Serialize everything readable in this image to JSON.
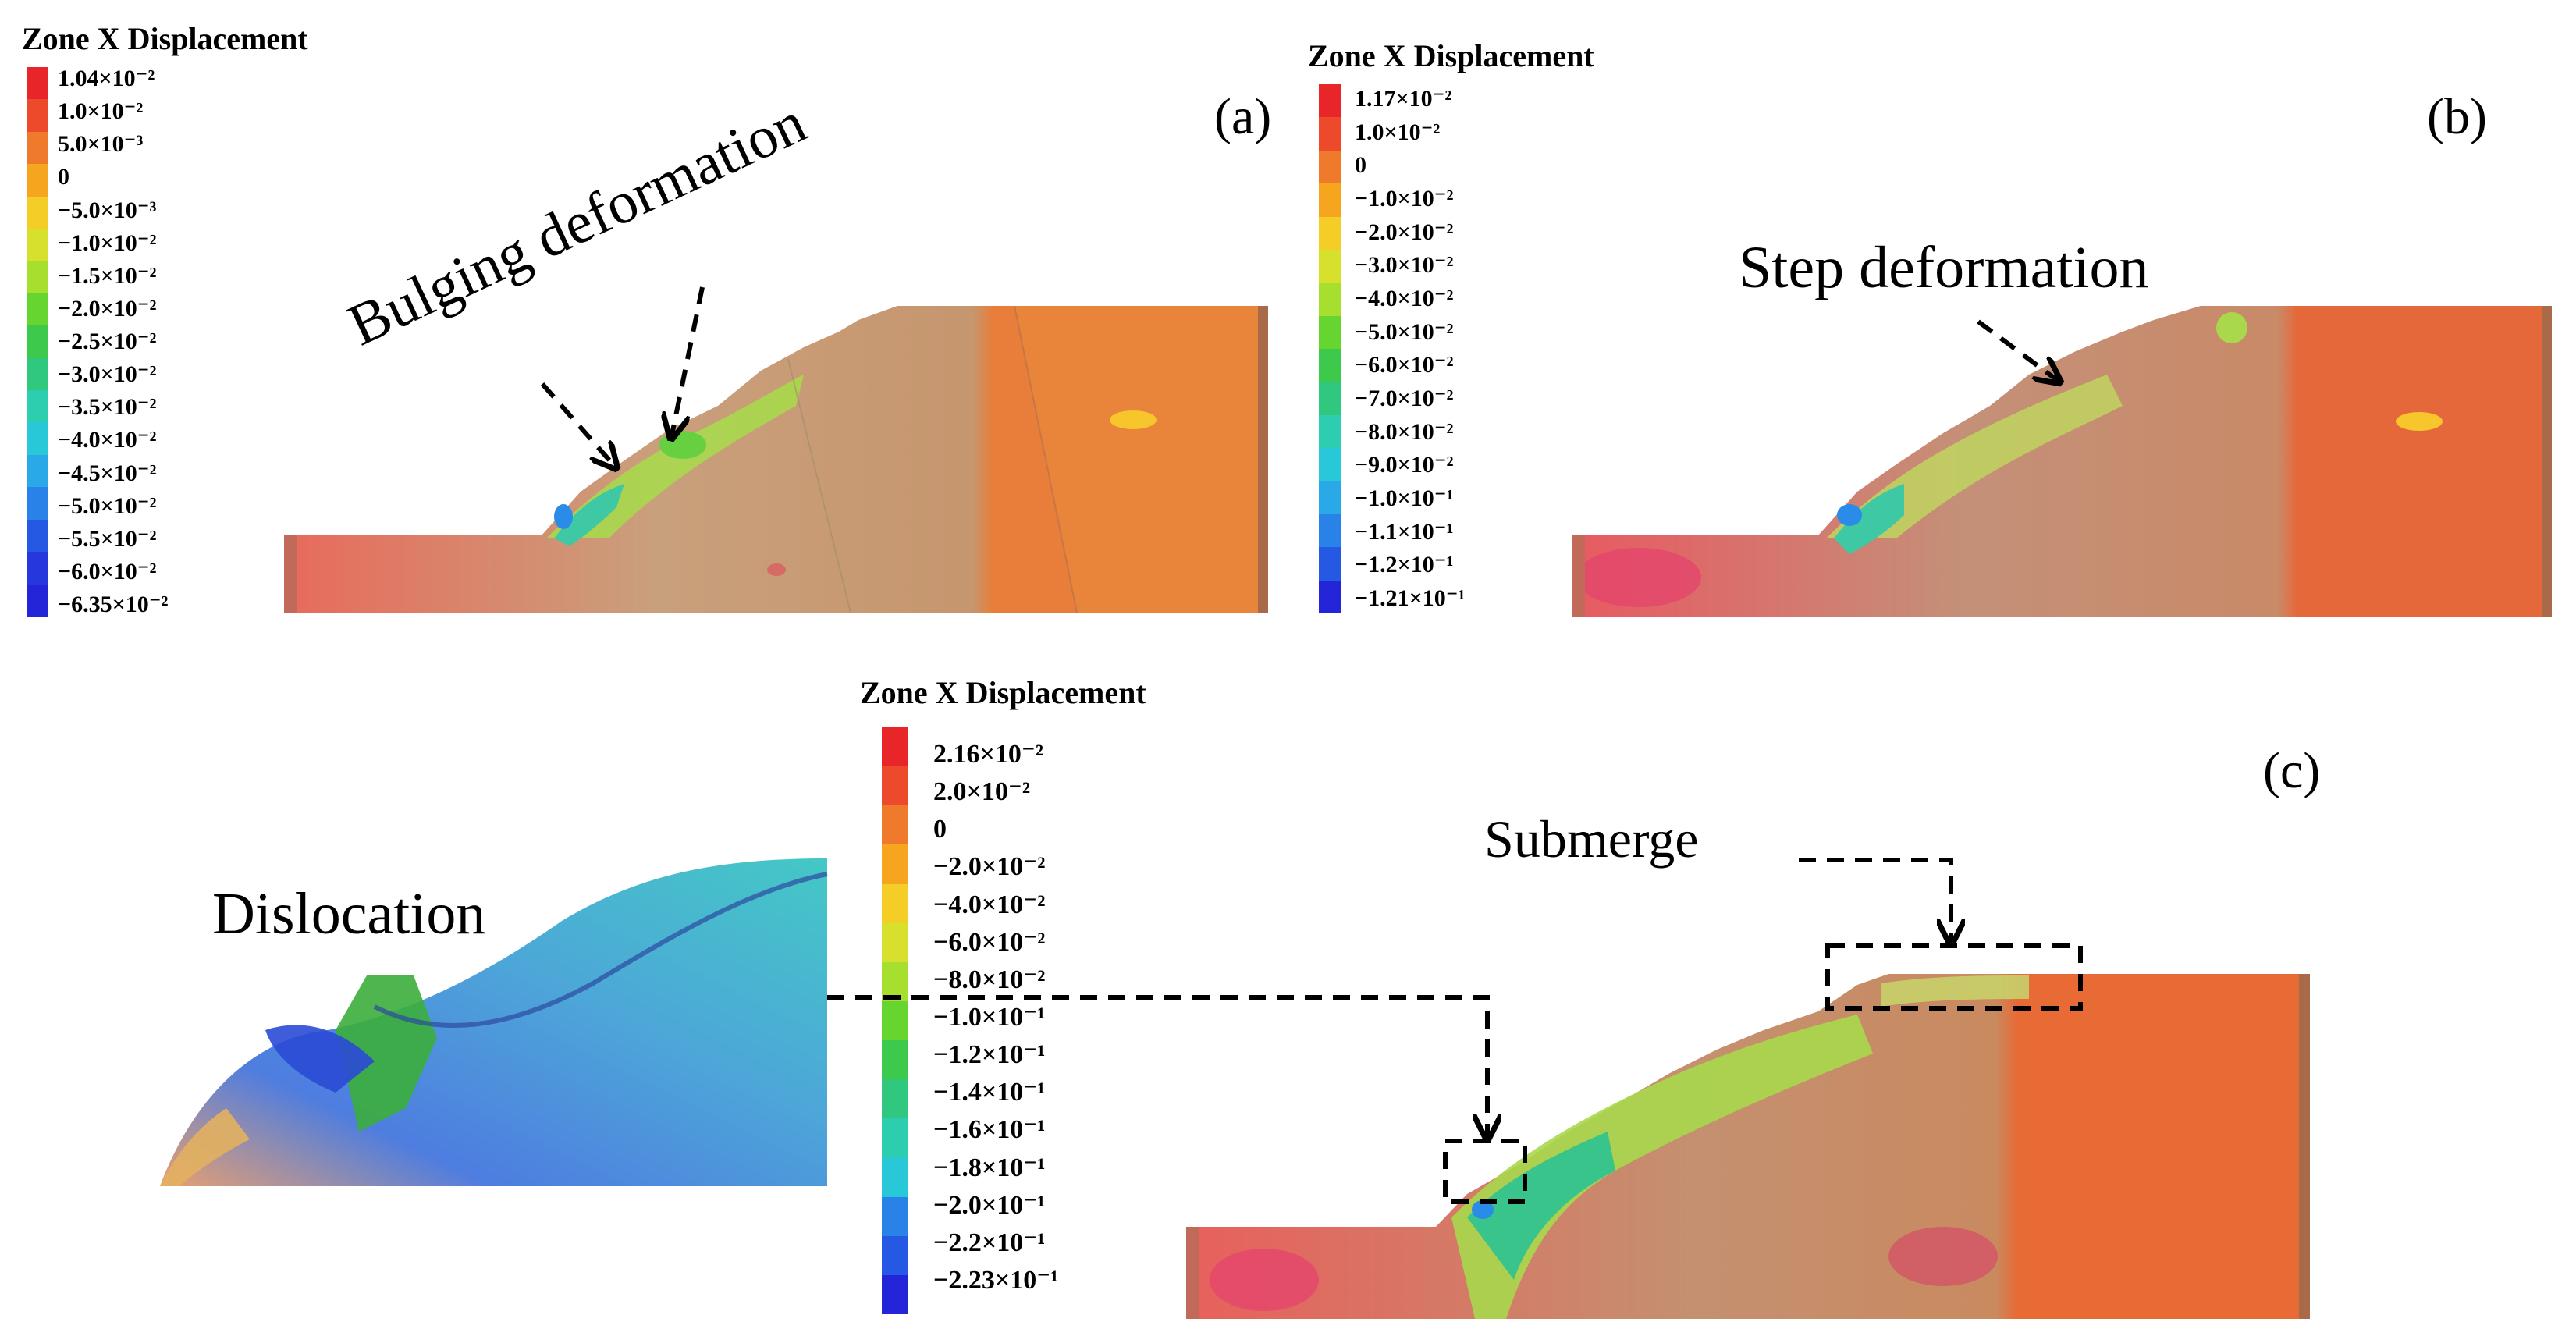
{
  "legends": [
    {
      "id": "a",
      "title": "Zone X Displacement",
      "labels": [
        "1.04×10⁻²",
        "1.0×10⁻²",
        "5.0×10⁻³",
        "0",
        "−5.0×10⁻³",
        "−1.0×10⁻²",
        "−1.5×10⁻²",
        "−2.0×10⁻²",
        "−2.5×10⁻²",
        "−3.0×10⁻²",
        "−3.5×10⁻²",
        "−4.0×10⁻²",
        "−4.5×10⁻²",
        "−5.0×10⁻²",
        "−5.5×10⁻²",
        "−6.0×10⁻²",
        "−6.35×10⁻²"
      ],
      "colors": [
        "#e8262a",
        "#ec4a2a",
        "#ef7a2c",
        "#f6a51e",
        "#f4cd27",
        "#d7e02d",
        "#a7df2f",
        "#66d52f",
        "#3cc94c",
        "#30c77f",
        "#2dcdb0",
        "#29c8d8",
        "#29a9e8",
        "#2882e8",
        "#2659e3",
        "#2637dd",
        "#2424d9"
      ]
    },
    {
      "id": "b",
      "title": "Zone X Displacement",
      "labels": [
        "1.17×10⁻²",
        "1.0×10⁻²",
        "0",
        "−1.0×10⁻²",
        "−2.0×10⁻²",
        "−3.0×10⁻²",
        "−4.0×10⁻²",
        "−5.0×10⁻²",
        "−6.0×10⁻²",
        "−7.0×10⁻²",
        "−8.0×10⁻²",
        "−9.0×10⁻²",
        "−1.0×10⁻¹",
        "−1.1×10⁻¹",
        "−1.2×10⁻¹",
        "−1.21×10⁻¹"
      ],
      "colors": [
        "#e8262a",
        "#ec4a2a",
        "#ef7a2c",
        "#f6a51e",
        "#f4cd27",
        "#d7e02d",
        "#a7df2f",
        "#66d52f",
        "#3cc94c",
        "#30c77f",
        "#2dcdb0",
        "#29c8d8",
        "#29a9e8",
        "#2882e8",
        "#2659e3",
        "#2424d9"
      ]
    },
    {
      "id": "c",
      "title": "Zone X Displacement",
      "labels": [
        "2.16×10⁻²",
        "2.0×10⁻²",
        "0",
        "−2.0×10⁻²",
        "−4.0×10⁻²",
        "−6.0×10⁻²",
        "−8.0×10⁻²",
        "−1.0×10⁻¹",
        "−1.2×10⁻¹",
        "−1.4×10⁻¹",
        "−1.6×10⁻¹",
        "−1.8×10⁻¹",
        "−2.0×10⁻¹",
        "−2.2×10⁻¹",
        "−2.23×10⁻¹"
      ],
      "colors": [
        "#e8262a",
        "#ec4a2a",
        "#ef7a2c",
        "#f6a51e",
        "#f4cd27",
        "#d7e02d",
        "#a7df2f",
        "#66d52f",
        "#3cc94c",
        "#30c77f",
        "#2dcdb0",
        "#29c8d8",
        "#2882e8",
        "#2659e3",
        "#2424d9"
      ]
    }
  ],
  "panels": {
    "a": "(a)",
    "b": "(b)",
    "c": "(c)"
  },
  "annotations": {
    "bulging": "Bulging deformation",
    "step": "Step deformation",
    "dislocation": "Dislocation",
    "submerge": "Submerge"
  }
}
